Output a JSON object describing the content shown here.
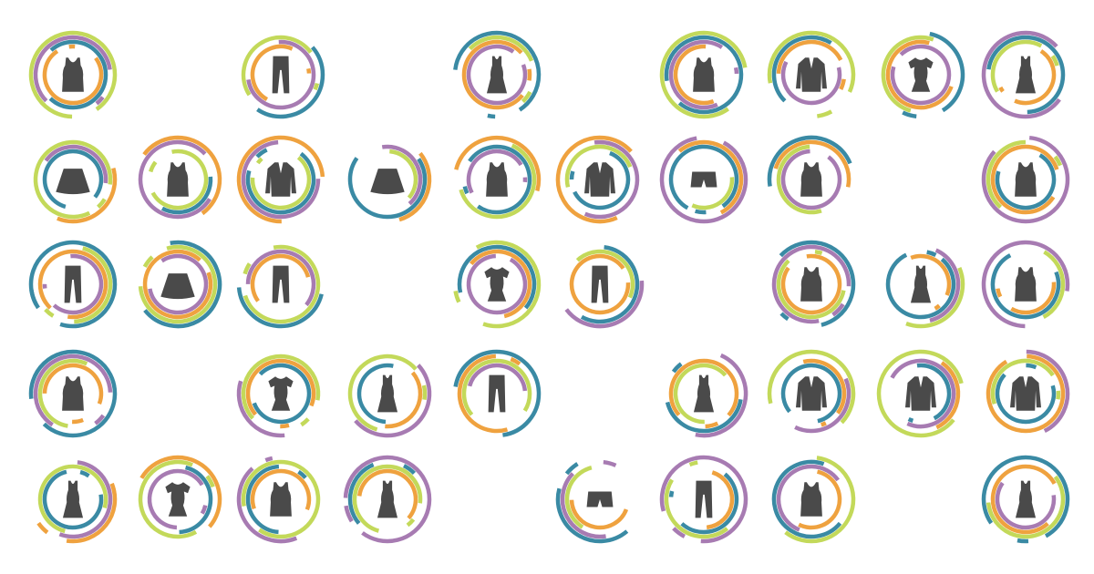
{
  "palette": {
    "teal": "#3a8aa4",
    "lime": "#c3d95a",
    "orange": "#efa23f",
    "purple": "#a77bb2",
    "garment": "#4a4a4a",
    "background": "#ffffff"
  },
  "grid": [
    [
      "tank",
      null,
      "pants",
      null,
      "dress",
      null,
      "tank",
      "jacket",
      "tee-dress",
      "dress"
    ],
    [
      "skirt",
      "tank",
      "jacket",
      "skirt",
      "tank",
      "jacket",
      "shorts",
      "tank",
      null,
      "tank"
    ],
    [
      "pants",
      "skirt",
      "pants",
      null,
      "tee-dress",
      "pants",
      null,
      "tank",
      "dress",
      "tank"
    ],
    [
      "tank",
      null,
      "tee-dress",
      "dress",
      "pants",
      null,
      "dress",
      "jacket",
      "jacket",
      "jacket"
    ],
    [
      "dress",
      "tee-dress",
      "tank",
      "dress",
      null,
      "shorts",
      "pants",
      "tank",
      null,
      "dress"
    ]
  ],
  "ring_colors": [
    "teal",
    "lime",
    "orange",
    "purple"
  ],
  "icon_names": {
    "tank": "tank-top-icon",
    "pants": "pants-icon",
    "dress": "long-dress-icon",
    "tee-dress": "tee-dress-icon",
    "skirt": "skirt-icon",
    "jacket": "jacket-icon",
    "shorts": "shorts-icon"
  }
}
